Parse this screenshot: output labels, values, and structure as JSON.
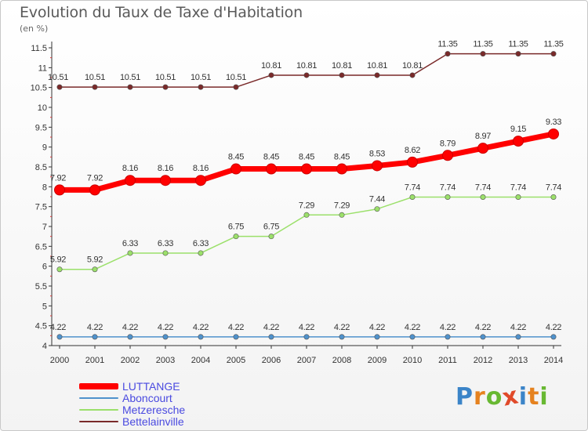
{
  "title": "Evolution du Taux de Taxe d'Habitation",
  "unit_label": "(en %)",
  "logo": {
    "letters": [
      "P",
      "r",
      "o",
      "x",
      "i",
      "t",
      "i"
    ],
    "colors": [
      "#3b84c8",
      "#e5821f",
      "#68b832",
      "#e04a2a",
      "#3b84c8",
      "#e5821f",
      "#68b832"
    ]
  },
  "chart_data": {
    "type": "line",
    "title": "Evolution du Taux de Taxe d'Habitation",
    "ylabel": "(en %)",
    "xlabel": "",
    "x": [
      "2000",
      "2001",
      "2002",
      "2003",
      "2004",
      "2005",
      "2006",
      "2007",
      "2008",
      "2009",
      "2010",
      "2011",
      "2012",
      "2013",
      "2014"
    ],
    "ylim": [
      4,
      11.5
    ],
    "yticks": [
      "4",
      "4.5",
      "5",
      "5.5",
      "6",
      "6.5",
      "7",
      "7.5",
      "8",
      "8.5",
      "9",
      "9.5",
      "10",
      "10.5",
      "11",
      "11.5"
    ],
    "grid": false,
    "legend_position": "bottom-left",
    "series": [
      {
        "name": "LUTTANGE",
        "color": "#ff0000",
        "emphasis": true,
        "values": [
          7.92,
          7.92,
          8.16,
          8.16,
          8.16,
          8.45,
          8.45,
          8.45,
          8.45,
          8.53,
          8.62,
          8.79,
          8.97,
          9.15,
          9.33
        ],
        "labels": [
          "7.92",
          "7.92",
          "8.16",
          "8.16",
          "8.16",
          "8.45",
          "8.45",
          "8.45",
          "8.45",
          "8.53",
          "8.62",
          "8.79",
          "8.97",
          "9.15",
          "9.33"
        ]
      },
      {
        "name": "Aboncourt",
        "color": "#4f92cc",
        "emphasis": false,
        "values": [
          4.22,
          4.22,
          4.22,
          4.22,
          4.22,
          4.22,
          4.22,
          4.22,
          4.22,
          4.22,
          4.22,
          4.22,
          4.22,
          4.22,
          4.22
        ],
        "labels": [
          "4.22",
          "4.22",
          "4.22",
          "4.22",
          "4.22",
          "4.22",
          "4.22",
          "4.22",
          "4.22",
          "4.22",
          "4.22",
          "4.22",
          "4.22",
          "4.22",
          "4.22"
        ]
      },
      {
        "name": "Metzeresche",
        "color": "#9be06a",
        "emphasis": false,
        "values": [
          5.92,
          5.92,
          6.33,
          6.33,
          6.33,
          6.75,
          6.75,
          7.29,
          7.29,
          7.44,
          7.74,
          7.74,
          7.74,
          7.74,
          7.74
        ],
        "labels": [
          "5.92",
          "5.92",
          "6.33",
          "6.33",
          "6.33",
          "6.75",
          "6.75",
          "7.29",
          "7.29",
          "7.44",
          "7.74",
          "7.74",
          "7.74",
          "7.74",
          "7.74"
        ]
      },
      {
        "name": "Bettelainville",
        "color": "#7a2a2a",
        "emphasis": false,
        "values": [
          10.51,
          10.51,
          10.51,
          10.51,
          10.51,
          10.51,
          10.81,
          10.81,
          10.81,
          10.81,
          10.81,
          11.35,
          11.35,
          11.35,
          11.35
        ],
        "labels": [
          "10.51",
          "10.51",
          "10.51",
          "10.51",
          "10.51",
          "10.51",
          "10.81",
          "10.81",
          "10.81",
          "10.81",
          "10.81",
          "11.35",
          "11.35",
          "11.35",
          "11.35"
        ]
      }
    ]
  }
}
